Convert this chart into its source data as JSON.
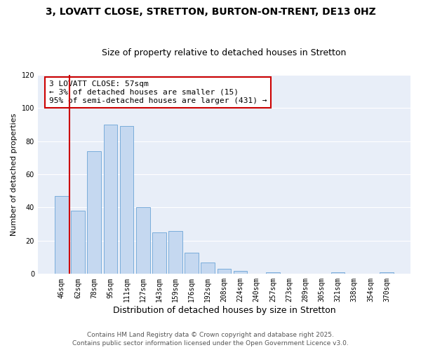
{
  "title": "3, LOVATT CLOSE, STRETTON, BURTON-ON-TRENT, DE13 0HZ",
  "subtitle": "Size of property relative to detached houses in Stretton",
  "xlabel": "Distribution of detached houses by size in Stretton",
  "ylabel": "Number of detached properties",
  "bar_labels": [
    "46sqm",
    "62sqm",
    "78sqm",
    "95sqm",
    "111sqm",
    "127sqm",
    "143sqm",
    "159sqm",
    "176sqm",
    "192sqm",
    "208sqm",
    "224sqm",
    "240sqm",
    "257sqm",
    "273sqm",
    "289sqm",
    "305sqm",
    "321sqm",
    "338sqm",
    "354sqm",
    "370sqm"
  ],
  "bar_values": [
    47,
    38,
    74,
    90,
    89,
    40,
    25,
    26,
    13,
    7,
    3,
    2,
    0,
    1,
    0,
    0,
    0,
    1,
    0,
    0,
    1
  ],
  "bar_color": "#c5d8f0",
  "bar_edge_color": "#7aaddb",
  "vline_color": "#cc0000",
  "annotation_text": "3 LOVATT CLOSE: 57sqm\n← 3% of detached houses are smaller (15)\n95% of semi-detached houses are larger (431) →",
  "annotation_box_color": "#ffffff",
  "annotation_box_edge_color": "#cc0000",
  "ylim": [
    0,
    120
  ],
  "yticks": [
    0,
    20,
    40,
    60,
    80,
    100,
    120
  ],
  "plot_bg_color": "#e8eef8",
  "grid_color": "#ffffff",
  "footer": "Contains HM Land Registry data © Crown copyright and database right 2025.\nContains public sector information licensed under the Open Government Licence v3.0.",
  "title_fontsize": 10,
  "subtitle_fontsize": 9,
  "xlabel_fontsize": 9,
  "ylabel_fontsize": 8,
  "tick_fontsize": 7,
  "annotation_fontsize": 8,
  "footer_fontsize": 6.5
}
